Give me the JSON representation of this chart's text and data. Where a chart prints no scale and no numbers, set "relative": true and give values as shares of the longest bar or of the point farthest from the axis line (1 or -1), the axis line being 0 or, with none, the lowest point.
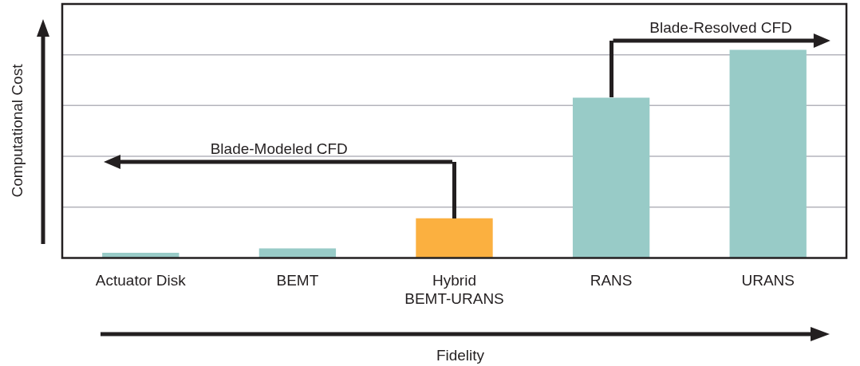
{
  "chart_data": {
    "type": "bar",
    "xlabel": "Fidelity",
    "ylabel": "Computational Cost",
    "categories": [
      "Actuator Disk",
      "BEMT",
      "Hybrid BEMT-URANS",
      "RANS",
      "URANS"
    ],
    "values": [
      0.025,
      0.046,
      0.19,
      0.77,
      1
    ],
    "colors": [
      "#98cbc7",
      "#98cbc7",
      "#fbb040",
      "#98cbc7",
      "#98cbc7"
    ],
    "relative": true,
    "grid": "y",
    "annotations": [
      "Blade-Modeled CFD",
      "Blade-Resolved CFD"
    ]
  }
}
